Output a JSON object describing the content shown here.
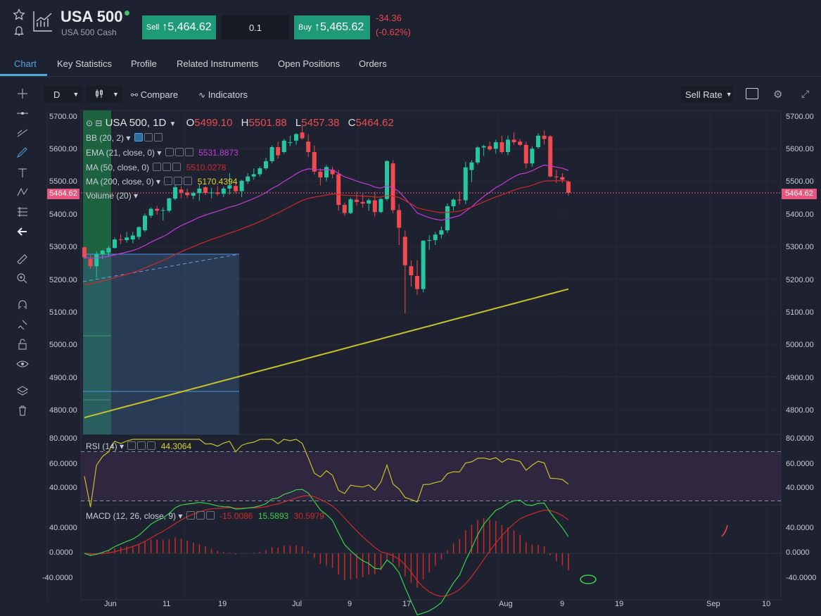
{
  "header": {
    "title": "USA 500",
    "subtitle": "USA 500 Cash",
    "sell_label": "Sell",
    "sell_price": "5,464.62",
    "quantity": "0.1",
    "buy_label": "Buy",
    "buy_price": "5,465.62",
    "change": "-34.36",
    "change_pct": "(-0.62%)"
  },
  "tabs": [
    "Chart",
    "Key Statistics",
    "Profile",
    "Related Instruments",
    "Open Positions",
    "Orders"
  ],
  "toolbar": {
    "interval": "D",
    "compare": "Compare",
    "indicators": "Indicators",
    "rate": "Sell Rate"
  },
  "legend": {
    "symbol": "USA 500, 1D",
    "o_label": "O",
    "o": "5499.10",
    "h_label": "H",
    "h": "5501.88",
    "l_label": "L",
    "l": "5457.38",
    "c_label": "C",
    "c": "5464.62",
    "bb": "BB (20, 2)",
    "ema": "EMA (21, close, 0)",
    "ema_val": "5531.8873",
    "ma50": "MA (50, close, 0)",
    "ma50_val": "5510.0278",
    "ma200": "MA (200, close, 0)",
    "ma200_val": "5170.4394",
    "volume": "Volume (20)"
  },
  "price_axis": [
    "5700.00",
    "5600.00",
    "5500.00",
    "5400.00",
    "5300.00",
    "5200.00",
    "5100.00",
    "5000.00",
    "4900.00",
    "4800.00"
  ],
  "last_price_tag": "5464.62",
  "rsi": {
    "label": "RSI (14)",
    "value": "44.3064",
    "axis": [
      "80.0000",
      "60.0000",
      "40.0000"
    ]
  },
  "macd": {
    "label": "MACD (12, 26, close, 9)",
    "v1": "-15.0086",
    "v2": "15.5893",
    "v3": "30.5979",
    "axis": [
      "40.0000",
      "0.0000",
      "-40.0000"
    ]
  },
  "time_axis": [
    "Jun",
    "11",
    "19",
    "Jul",
    "9",
    "17",
    "Aug",
    "9",
    "19",
    "Sep",
    "10"
  ],
  "colors": {
    "up": "#26c6a0",
    "down": "#ef4b50",
    "ema": "#c43ad8",
    "ma50": "#cc2a2a",
    "ma200": "#c8c02a",
    "bg": "#1e2230"
  },
  "chart_data": {
    "type": "candlestick",
    "ohlc": [
      [
        5298,
        5300,
        5262,
        5267
      ],
      [
        5262,
        5275,
        5232,
        5240
      ],
      [
        5240,
        5285,
        5205,
        5276
      ],
      [
        5276,
        5290,
        5262,
        5288
      ],
      [
        5282,
        5302,
        5270,
        5296
      ],
      [
        5296,
        5328,
        5294,
        5322
      ],
      [
        5322,
        5338,
        5308,
        5320
      ],
      [
        5320,
        5345,
        5312,
        5328
      ],
      [
        5322,
        5345,
        5310,
        5334
      ],
      [
        5330,
        5362,
        5322,
        5360
      ],
      [
        5350,
        5402,
        5345,
        5395
      ],
      [
        5395,
        5420,
        5388,
        5416
      ],
      [
        5416,
        5425,
        5398,
        5410
      ],
      [
        5410,
        5420,
        5380,
        5412
      ],
      [
        5410,
        5450,
        5405,
        5448
      ],
      [
        5447,
        5490,
        5442,
        5482
      ],
      [
        5475,
        5485,
        5448,
        5466
      ],
      [
        5466,
        5478,
        5450,
        5458
      ],
      [
        5456,
        5470,
        5445,
        5464
      ],
      [
        5464,
        5490,
        5440,
        5478
      ],
      [
        5482,
        5485,
        5458,
        5465
      ],
      [
        5465,
        5480,
        5448,
        5466
      ],
      [
        5466,
        5485,
        5455,
        5462
      ],
      [
        5462,
        5484,
        5452,
        5478
      ],
      [
        5478,
        5525,
        5460,
        5488
      ],
      [
        5486,
        5490,
        5462,
        5470
      ],
      [
        5470,
        5505,
        5452,
        5502
      ],
      [
        5500,
        5525,
        5492,
        5515
      ],
      [
        5515,
        5540,
        5505,
        5522
      ],
      [
        5522,
        5545,
        5515,
        5540
      ],
      [
        5540,
        5572,
        5535,
        5562
      ],
      [
        5562,
        5610,
        5555,
        5605
      ],
      [
        5605,
        5622,
        5570,
        5580
      ],
      [
        5590,
        5630,
        5585,
        5625
      ],
      [
        5620,
        5640,
        5608,
        5620
      ],
      [
        5625,
        5648,
        5612,
        5645
      ],
      [
        5650,
        5670,
        5628,
        5632
      ],
      [
        5622,
        5645,
        5575,
        5590
      ],
      [
        5590,
        5610,
        5520,
        5530
      ],
      [
        5530,
        5540,
        5488,
        5512
      ],
      [
        5512,
        5550,
        5500,
        5544
      ],
      [
        5536,
        5545,
        5510,
        5522
      ],
      [
        5522,
        5535,
        5410,
        5428
      ],
      [
        5428,
        5435,
        5395,
        5403
      ],
      [
        5403,
        5450,
        5400,
        5445
      ],
      [
        5444,
        5468,
        5425,
        5437
      ],
      [
        5437,
        5462,
        5420,
        5432
      ],
      [
        5432,
        5448,
        5410,
        5442
      ],
      [
        5442,
        5468,
        5392,
        5406
      ],
      [
        5406,
        5448,
        5403,
        5446
      ],
      [
        5446,
        5565,
        5440,
        5562
      ],
      [
        5555,
        5565,
        5402,
        5412
      ],
      [
        5412,
        5430,
        5305,
        5358
      ],
      [
        5330,
        5350,
        5095,
        5243
      ],
      [
        5240,
        5258,
        5178,
        5212
      ],
      [
        5210,
        5258,
        5152,
        5170
      ],
      [
        5170,
        5320,
        5160,
        5318
      ],
      [
        5318,
        5335,
        5290,
        5320
      ],
      [
        5320,
        5345,
        5305,
        5337
      ],
      [
        5337,
        5362,
        5325,
        5350
      ],
      [
        5350,
        5432,
        5342,
        5424
      ],
      [
        5424,
        5448,
        5410,
        5444
      ],
      [
        5444,
        5470,
        5430,
        5442
      ],
      [
        5442,
        5560,
        5430,
        5543
      ],
      [
        5535,
        5565,
        5498,
        5558
      ],
      [
        5558,
        5608,
        5552,
        5604
      ],
      [
        5604,
        5612,
        5578,
        5608
      ],
      [
        5608,
        5622,
        5594,
        5598
      ],
      [
        5600,
        5628,
        5585,
        5620
      ],
      [
        5620,
        5640,
        5585,
        5590
      ],
      [
        5590,
        5640,
        5580,
        5628
      ],
      [
        5628,
        5650,
        5612,
        5620
      ],
      [
        5622,
        5630,
        5608,
        5612
      ],
      [
        5612,
        5622,
        5540,
        5555
      ],
      [
        5555,
        5608,
        5545,
        5600
      ],
      [
        5605,
        5648,
        5600,
        5640
      ],
      [
        5640,
        5656,
        5614,
        5630
      ],
      [
        5638,
        5642,
        5512,
        5515
      ],
      [
        5515,
        5535,
        5495,
        5513
      ],
      [
        5513,
        5525,
        5496,
        5505
      ],
      [
        5499,
        5502,
        5457,
        5465
      ]
    ],
    "x_ticks": [
      "Jun",
      "11",
      "19",
      "Jul",
      "9",
      "17",
      "Aug",
      "9",
      "19",
      "Sep",
      "10"
    ],
    "ylim": [
      4760,
      5720
    ]
  }
}
